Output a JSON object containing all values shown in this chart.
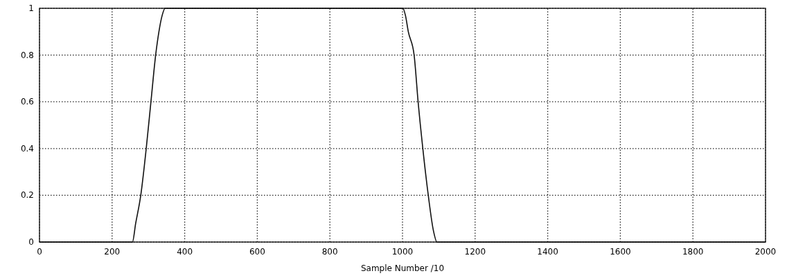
{
  "chart_data": {
    "type": "line",
    "xlabel": "Sample Number /10",
    "series": [
      {
        "color": "#111111",
        "x": [
          0,
          256,
          265,
          279,
          294,
          307,
          320,
          329,
          338,
          346,
          1001,
          1008,
          1016,
          1032,
          1043,
          1056,
          1071,
          1085,
          1095,
          2000
        ],
        "values": [
          0,
          0,
          0.08,
          0.2,
          0.4,
          0.6,
          0.8,
          0.9,
          0.97,
          1,
          1,
          0.97,
          0.9,
          0.8,
          0.6,
          0.4,
          0.2,
          0.05,
          0,
          0
        ]
      }
    ],
    "xlim": [
      0,
      2000
    ],
    "xticks": [
      0,
      200,
      400,
      600,
      800,
      1000,
      1200,
      1400,
      1600,
      1800,
      2000
    ],
    "ylim": [
      0,
      1
    ],
    "yticks": [
      0,
      0.2,
      0.4,
      0.6,
      0.8,
      1
    ],
    "grid": true,
    "line_style": "solid",
    "marker": "none"
  }
}
